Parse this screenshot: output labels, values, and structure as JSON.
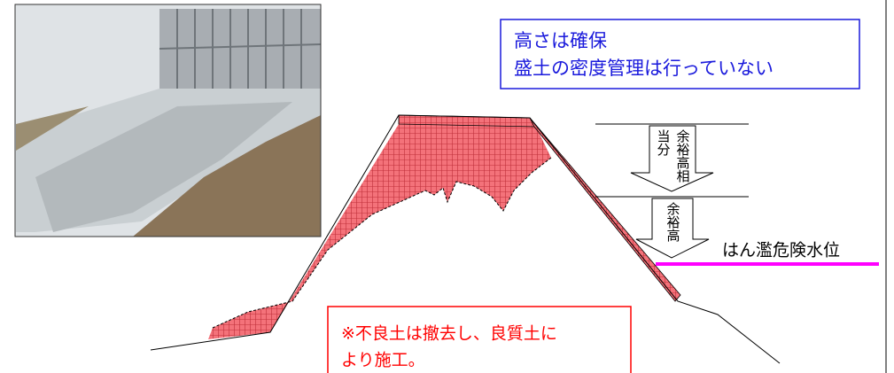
{
  "info_box": {
    "lines": [
      "高さは確保",
      "盛土の密度管理は行っていない"
    ]
  },
  "arrow_upper": {
    "columns": [
      "余裕高相",
      "当分"
    ]
  },
  "arrow_lower": {
    "columns": [
      "余裕高"
    ]
  },
  "water_level": {
    "label": "はん濫危険水位"
  },
  "note": {
    "lines": [
      "※不良土は撤去し、良質土に",
      "より施工。"
    ]
  }
}
